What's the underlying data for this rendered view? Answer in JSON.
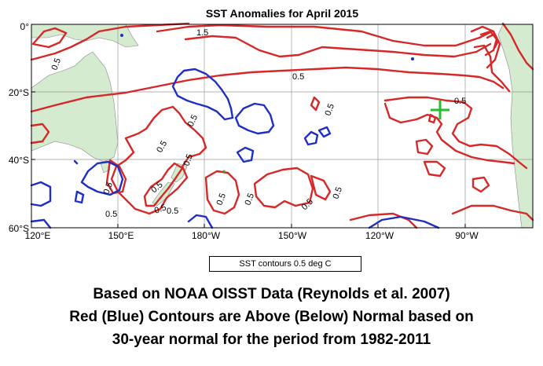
{
  "title": "SST Anomalies for April 2015",
  "map": {
    "lat_labels": [
      "0°",
      "20°S",
      "40°S",
      "60°S"
    ],
    "lon_labels": [
      "120°E",
      "150°E",
      "180°W",
      "150°W",
      "120°W",
      "90°W"
    ],
    "contour_labels": [
      "1.5",
      "0.5",
      "0.5",
      "0.5",
      "0.5",
      "0.5",
      "0.5",
      "0.5",
      "0.5",
      "0.5",
      "0.5",
      "0.5",
      "0.5",
      "0.5",
      "0.5",
      "0.5",
      "0.5"
    ],
    "colors": {
      "ocean": "#ffffff",
      "land": "#d4ebd0",
      "above_normal": "#d62828",
      "below_normal": "#1f2fc2",
      "marker": "#22c02a",
      "grid": "#9a9a9a"
    }
  },
  "legend": "SST contours 0.5 deg C",
  "caption": [
    "Based on NOAA OISST Data (Reynolds et al. 2007)",
    "Red (Blue) Contours are Above (Below) Normal  based on",
    "30-year normal for the period from 1982-2011"
  ]
}
